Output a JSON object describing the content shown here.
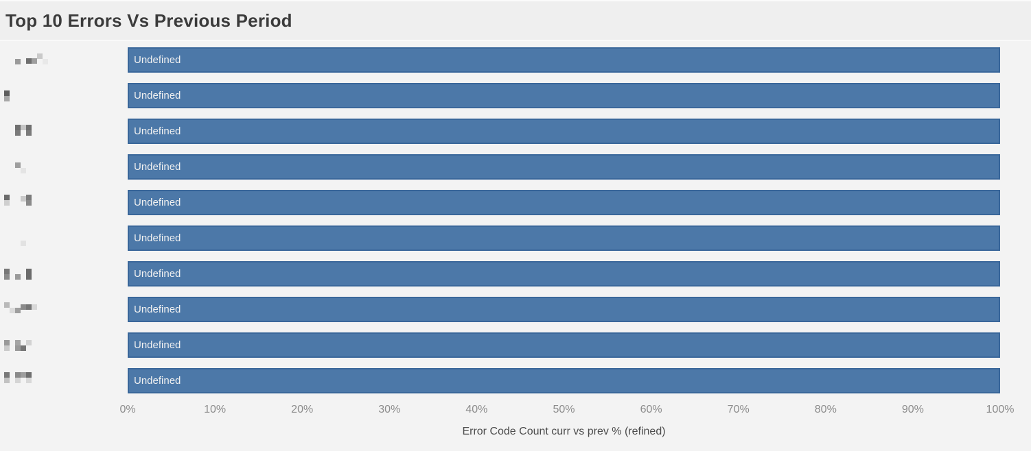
{
  "header": {
    "title": "Top 10 Errors Vs Previous Period"
  },
  "colors": {
    "page_bg": "#f3f3f3",
    "header_bg": "#efefef",
    "title_text": "#3b3b3b",
    "bar_fill": "#4c78a8",
    "bar_border": "#3a679a",
    "bar_text": "#f1f1f1",
    "tick_text": "#8c8c8c",
    "axis_label_text": "#4c4c4c"
  },
  "chart_data": {
    "type": "bar",
    "orientation": "horizontal",
    "title": "Top 10 Errors Vs Previous Period",
    "categories_note": "y-axis category labels are pixelated/redacted in the screenshot (unreadable gray mosaics)",
    "series": [
      {
        "name": "Error Code Count curr vs prev % (refined)",
        "values": [
          100,
          100,
          100,
          100,
          100,
          100,
          100,
          100,
          100,
          100
        ]
      }
    ],
    "bar_value_labels": [
      "Undefined",
      "Undefined",
      "Undefined",
      "Undefined",
      "Undefined",
      "Undefined",
      "Undefined",
      "Undefined",
      "Undefined",
      "Undefined"
    ],
    "xlabel": "Error Code Count curr vs prev % (refined)",
    "xticks": [
      "0%",
      "10%",
      "20%",
      "30%",
      "40%",
      "50%",
      "60%",
      "70%",
      "80%",
      "90%",
      "100%"
    ],
    "xlim": [
      0,
      100
    ],
    "grid": false,
    "legend": false
  },
  "bars": [
    {
      "label": "Undefined",
      "value_pct": 100,
      "pixels": [
        [
          22,
          17,
          "#9a9a9a"
        ],
        [
          38,
          16,
          "#6f6f6f"
        ],
        [
          46,
          16,
          "#9e9e9e"
        ],
        [
          54,
          9,
          "#c9c9c9"
        ],
        [
          62,
          17,
          "#e8e8e8"
        ]
      ]
    },
    {
      "label": "Undefined",
      "value_pct": 100,
      "pixels": [
        [
          6,
          11,
          "#5e5e5e"
        ],
        [
          6,
          19,
          "#a8a8a8"
        ]
      ]
    },
    {
      "label": "Undefined",
      "value_pct": 100,
      "pixels": [
        [
          22,
          9,
          "#6f6f6f"
        ],
        [
          22,
          17,
          "#7a7a7a"
        ],
        [
          30,
          9,
          "#c5c5c5"
        ],
        [
          38,
          9,
          "#6f6f6f"
        ],
        [
          38,
          17,
          "#7a7a7a"
        ]
      ]
    },
    {
      "label": "Undefined",
      "value_pct": 100,
      "pixels": [
        [
          22,
          12,
          "#9e9e9e"
        ],
        [
          30,
          20,
          "#e4e4e4"
        ]
      ]
    },
    {
      "label": "Undefined",
      "value_pct": 100,
      "pixels": [
        [
          6,
          7,
          "#6b6b6b"
        ],
        [
          6,
          15,
          "#cfcfcf"
        ],
        [
          30,
          9,
          "#c9c9c9"
        ],
        [
          38,
          7,
          "#7a7a7a"
        ],
        [
          38,
          15,
          "#8a8a8a"
        ]
      ]
    },
    {
      "label": "Undefined",
      "value_pct": 100,
      "pixels": [
        [
          30,
          22,
          "#e2e2e2"
        ]
      ]
    },
    {
      "label": "Undefined",
      "value_pct": 100,
      "pixels": [
        [
          6,
          11,
          "#777777"
        ],
        [
          6,
          19,
          "#8a8a8a"
        ],
        [
          22,
          19,
          "#9a9a9a"
        ],
        [
          38,
          11,
          "#6b6b6b"
        ],
        [
          38,
          19,
          "#6b6b6b"
        ]
      ]
    },
    {
      "label": "Undefined",
      "value_pct": 100,
      "pixels": [
        [
          6,
          8,
          "#b9b9b9"
        ],
        [
          14,
          16,
          "#dadada"
        ],
        [
          22,
          16,
          "#9e9e9e"
        ],
        [
          30,
          11,
          "#8a8a8a"
        ],
        [
          38,
          11,
          "#757575"
        ],
        [
          46,
          11,
          "#d8d8d8"
        ]
      ]
    },
    {
      "label": "Undefined",
      "value_pct": 100,
      "pixels": [
        [
          6,
          11,
          "#9a9a9a"
        ],
        [
          6,
          19,
          "#cbcbcb"
        ],
        [
          22,
          11,
          "#a5a5a5"
        ],
        [
          22,
          19,
          "#999999"
        ],
        [
          30,
          19,
          "#757575"
        ],
        [
          38,
          11,
          "#d2d2d2"
        ]
      ]
    },
    {
      "label": "Undefined",
      "value_pct": 100,
      "pixels": [
        [
          6,
          6,
          "#787878"
        ],
        [
          6,
          14,
          "#c2c2c2"
        ],
        [
          22,
          6,
          "#8a8a8a"
        ],
        [
          22,
          14,
          "#d5d5d5"
        ],
        [
          30,
          6,
          "#9e9e9e"
        ],
        [
          38,
          6,
          "#6f6f6f"
        ],
        [
          38,
          14,
          "#d8d8d8"
        ]
      ]
    }
  ]
}
